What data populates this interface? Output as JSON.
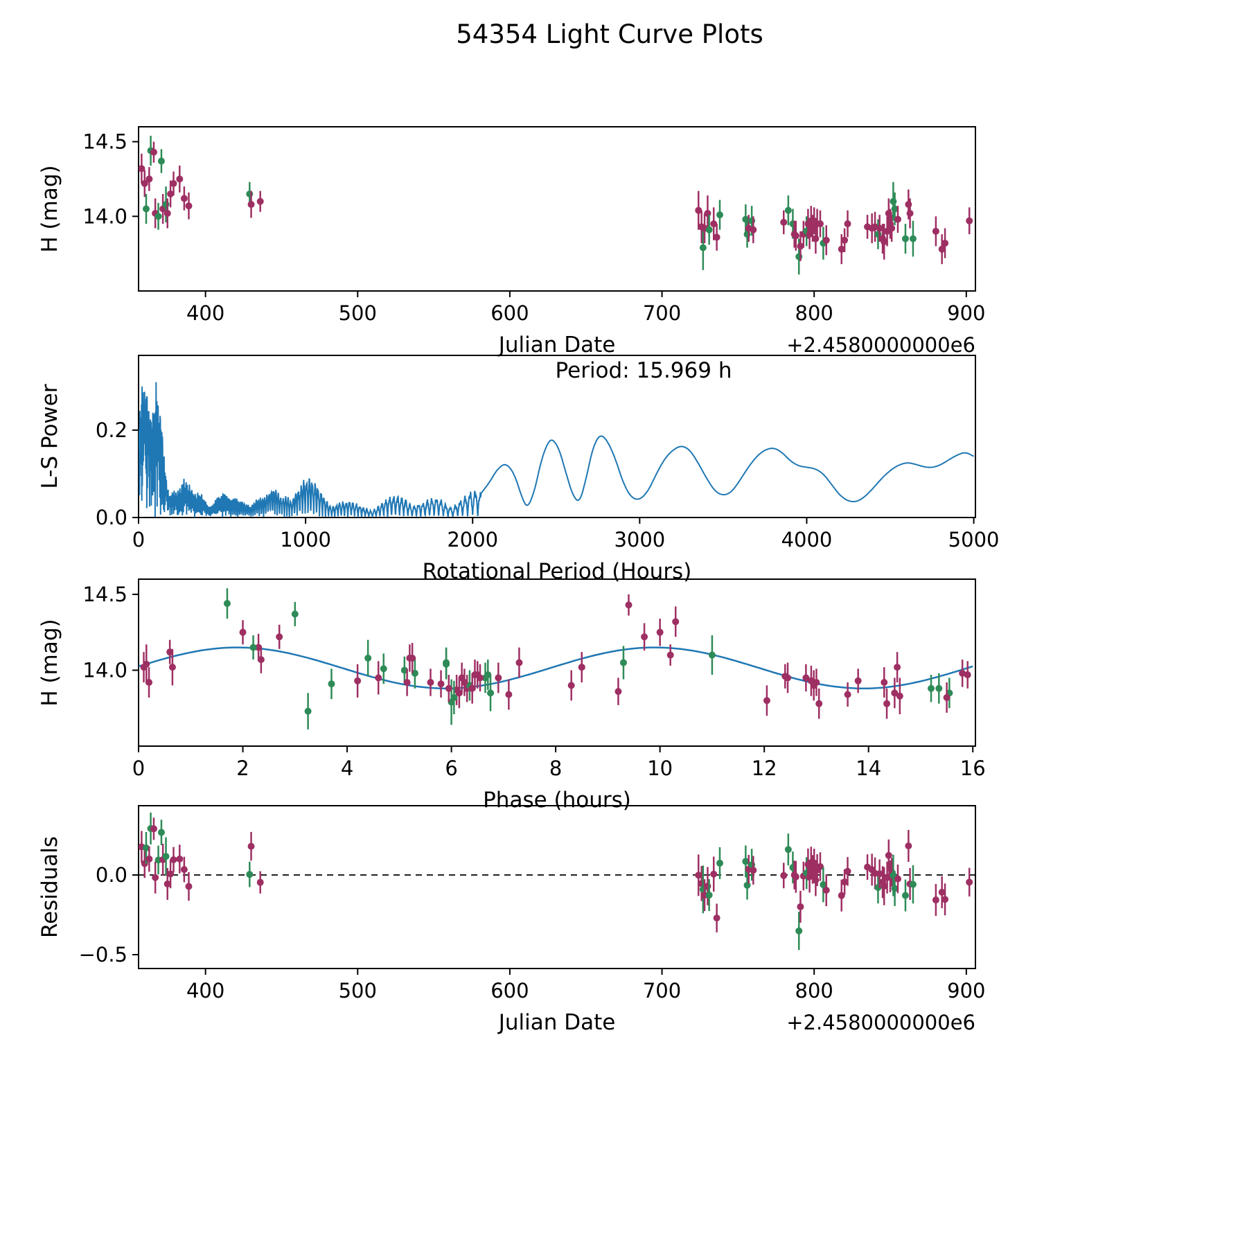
{
  "title": "54354 Light Curve Plots",
  "colors": {
    "series_purple": "#9e2f63",
    "series_green": "#2e8b57",
    "line_blue": "#1f77b4",
    "axis": "#000000"
  },
  "panel1": {
    "ylabel": "H (mag)",
    "xlabel": "Julian Date",
    "offset_text": "+2.4580000000e6",
    "xticks": [
      400,
      500,
      600,
      700,
      800,
      900
    ],
    "yticks": [
      14.0,
      14.5
    ],
    "ytick_labels": [
      "14.0",
      "14.5"
    ]
  },
  "panel2": {
    "ylabel": "L-S Power",
    "xlabel": "Rotational Period (Hours)",
    "annotation": "Period: 15.969 h",
    "xticks": [
      0,
      1000,
      2000,
      3000,
      4000,
      5000
    ],
    "yticks": [
      0.0,
      0.2
    ],
    "ytick_labels": [
      "0.0",
      "0.2"
    ]
  },
  "panel3": {
    "ylabel": "H (mag)",
    "xlabel": "Phase (hours)",
    "xticks": [
      0,
      2,
      4,
      6,
      8,
      10,
      12,
      14,
      16
    ],
    "yticks": [
      14.0,
      14.5
    ],
    "ytick_labels": [
      "14.0",
      "14.5"
    ]
  },
  "panel4": {
    "ylabel": "Residuals",
    "xlabel": "Julian Date",
    "offset_text": "+2.4580000000e6",
    "xticks": [
      400,
      500,
      600,
      700,
      800,
      900
    ],
    "yticks": [
      -0.5,
      0.0
    ],
    "ytick_labels": [
      "−0.5",
      "0.0"
    ]
  },
  "observations": {
    "columns": [
      "jd_minus_2458000",
      "phase_hours",
      "h_mag",
      "err",
      "series"
    ],
    "series_names": [
      "purple",
      "green"
    ],
    "rows": [
      [
        358,
        10.3,
        14.32,
        0.1,
        0
      ],
      [
        360,
        9.7,
        14.22,
        0.09,
        0
      ],
      [
        361,
        5.9,
        14.05,
        0.1,
        1
      ],
      [
        363,
        2.0,
        14.25,
        0.08,
        0
      ],
      [
        364,
        1.7,
        14.44,
        0.1,
        1
      ],
      [
        366,
        9.4,
        14.43,
        0.07,
        0
      ],
      [
        367,
        0.1,
        14.02,
        0.1,
        0
      ],
      [
        369,
        5.1,
        14.0,
        0.09,
        1
      ],
      [
        371,
        3.0,
        14.37,
        0.08,
        1
      ],
      [
        372,
        7.3,
        14.05,
        0.1,
        0
      ],
      [
        374,
        4.4,
        14.08,
        0.12,
        1
      ],
      [
        375,
        8.5,
        14.02,
        0.1,
        0
      ],
      [
        377,
        2.3,
        14.15,
        0.09,
        0
      ],
      [
        379,
        2.7,
        14.22,
        0.08,
        0
      ],
      [
        383,
        10.0,
        14.25,
        0.09,
        0
      ],
      [
        386,
        0.6,
        14.12,
        0.08,
        0
      ],
      [
        389,
        2.35,
        14.07,
        0.09,
        0
      ],
      [
        429,
        2.2,
        14.15,
        0.08,
        1
      ],
      [
        430,
        5.2,
        14.08,
        0.09,
        0
      ],
      [
        436,
        10.2,
        14.1,
        0.07,
        0
      ],
      [
        724,
        0.15,
        14.04,
        0.13,
        0
      ],
      [
        726,
        4.2,
        13.93,
        0.11,
        0
      ],
      [
        727,
        6.0,
        13.79,
        0.15,
        1
      ],
      [
        728,
        0.2,
        13.92,
        0.1,
        0
      ],
      [
        730,
        0.65,
        14.02,
        0.12,
        0
      ],
      [
        731,
        3.7,
        13.91,
        0.1,
        1
      ],
      [
        734,
        4.6,
        13.95,
        0.11,
        0
      ],
      [
        736,
        9.2,
        13.86,
        0.09,
        0
      ],
      [
        738,
        4.7,
        14.01,
        0.1,
        1
      ],
      [
        755,
        5.3,
        13.98,
        0.1,
        1
      ],
      [
        756,
        15.2,
        13.88,
        0.09,
        1
      ],
      [
        757,
        5.6,
        13.92,
        0.09,
        0
      ],
      [
        759,
        6.7,
        13.97,
        0.1,
        1
      ],
      [
        760,
        5.8,
        13.91,
        0.09,
        0
      ],
      [
        780,
        12.4,
        13.96,
        0.08,
        0
      ],
      [
        783,
        5.9,
        14.04,
        0.1,
        1
      ],
      [
        786,
        6.65,
        13.95,
        0.1,
        1
      ],
      [
        787,
        5.95,
        13.88,
        0.09,
        0
      ],
      [
        788,
        6.1,
        13.87,
        0.1,
        0
      ],
      [
        790,
        3.25,
        13.73,
        0.12,
        1
      ],
      [
        791,
        12.05,
        13.8,
        0.1,
        0
      ],
      [
        793,
        6.3,
        13.88,
        0.09,
        0
      ],
      [
        795,
        6.35,
        13.9,
        0.1,
        1
      ],
      [
        796,
        6.2,
        13.95,
        0.1,
        0
      ],
      [
        797,
        6.4,
        13.88,
        0.1,
        0
      ],
      [
        798,
        6.45,
        13.97,
        0.1,
        0
      ],
      [
        799,
        6.25,
        13.92,
        0.09,
        0
      ],
      [
        800,
        6.5,
        13.97,
        0.09,
        0
      ],
      [
        801,
        6.15,
        13.85,
        0.1,
        0
      ],
      [
        802,
        6.9,
        13.95,
        0.1,
        0
      ],
      [
        804,
        6.55,
        13.95,
        0.09,
        0
      ],
      [
        806,
        6.05,
        13.82,
        0.11,
        1
      ],
      [
        808,
        7.1,
        13.84,
        0.1,
        0
      ],
      [
        818,
        13.05,
        13.78,
        0.1,
        0
      ],
      [
        820,
        13.6,
        13.84,
        0.08,
        0
      ],
      [
        822,
        12.8,
        13.95,
        0.09,
        0
      ],
      [
        835,
        13.8,
        13.93,
        0.08,
        0
      ],
      [
        838,
        14.3,
        13.92,
        0.1,
        0
      ],
      [
        840,
        12.9,
        13.93,
        0.1,
        0
      ],
      [
        842,
        15.35,
        13.88,
        0.1,
        1
      ],
      [
        843,
        13.0,
        13.92,
        0.09,
        0
      ],
      [
        845,
        14.5,
        13.85,
        0.1,
        0
      ],
      [
        846,
        14.6,
        13.83,
        0.12,
        0
      ],
      [
        848,
        12.95,
        13.9,
        0.1,
        0
      ],
      [
        849,
        14.55,
        14.02,
        0.1,
        0
      ],
      [
        850,
        12.45,
        13.95,
        0.1,
        0
      ],
      [
        851,
        5.15,
        13.92,
        0.09,
        0
      ],
      [
        852,
        11.0,
        14.1,
        0.13,
        1
      ],
      [
        853,
        9.3,
        14.05,
        0.11,
        1
      ],
      [
        855,
        15.8,
        13.98,
        0.09,
        0
      ],
      [
        860,
        15.55,
        13.85,
        0.1,
        1
      ],
      [
        862,
        5.25,
        14.08,
        0.1,
        0
      ],
      [
        863,
        8.5,
        14.02,
        0.1,
        0
      ],
      [
        865,
        6.75,
        13.85,
        0.12,
        1
      ],
      [
        880,
        8.3,
        13.9,
        0.1,
        0
      ],
      [
        884,
        14.35,
        13.78,
        0.1,
        0
      ],
      [
        886,
        15.5,
        13.82,
        0.1,
        0
      ],
      [
        902,
        15.9,
        13.97,
        0.09,
        0
      ]
    ]
  },
  "chart_data": [
    {
      "type": "scatter",
      "name": "h_mag_vs_julian_date",
      "title": "",
      "xlabel": "Julian Date",
      "ylabel": "H (mag)",
      "x_offset_note": "+2.4580000000e6",
      "xlim": [
        356,
        906
      ],
      "ylim": [
        13.5,
        14.6
      ],
      "source": "observations",
      "x_field": "jd_minus_2458000",
      "y_field": "h_mag",
      "error_field": "err",
      "grid": false
    },
    {
      "type": "line",
      "name": "lomb_scargle_periodogram",
      "xlabel": "Rotational Period (Hours)",
      "ylabel": "L-S Power",
      "annotation": "Period: 15.969 h",
      "best_period_hours": 15.969,
      "xlim": [
        0,
        5010
      ],
      "ylim": [
        0,
        0.371
      ],
      "grid": false,
      "noise_region_end": 2050,
      "noise_period_base": 5,
      "noise_period_slope": 0.028,
      "noise_envelope": [
        [
          0,
          0.3
        ],
        [
          20,
          0.37
        ],
        [
          50,
          0.32
        ],
        [
          80,
          0.25
        ],
        [
          110,
          0.35
        ],
        [
          140,
          0.3
        ],
        [
          160,
          0.18
        ],
        [
          180,
          0.12
        ],
        [
          210,
          0.1
        ],
        [
          240,
          0.08
        ],
        [
          270,
          0.1
        ],
        [
          300,
          0.08
        ],
        [
          340,
          0.06
        ],
        [
          380,
          0.07
        ],
        [
          420,
          0.05
        ],
        [
          460,
          0.06
        ],
        [
          500,
          0.07
        ],
        [
          550,
          0.05
        ],
        [
          600,
          0.045
        ],
        [
          650,
          0.05
        ],
        [
          700,
          0.06
        ],
        [
          750,
          0.05
        ],
        [
          800,
          0.075
        ],
        [
          850,
          0.06
        ],
        [
          900,
          0.08
        ],
        [
          950,
          0.09
        ],
        [
          1000,
          0.1
        ],
        [
          1050,
          0.09
        ],
        [
          1100,
          0.07
        ],
        [
          1150,
          0.05
        ],
        [
          1200,
          0.045
        ],
        [
          1250,
          0.04
        ],
        [
          1300,
          0.035
        ],
        [
          1350,
          0.03
        ],
        [
          1400,
          0.03
        ],
        [
          1450,
          0.04
        ],
        [
          1500,
          0.05
        ],
        [
          1550,
          0.055
        ],
        [
          1600,
          0.06
        ],
        [
          1650,
          0.05
        ],
        [
          1700,
          0.04
        ],
        [
          1750,
          0.045
        ],
        [
          1800,
          0.05
        ],
        [
          1850,
          0.04
        ],
        [
          1900,
          0.05
        ],
        [
          1950,
          0.055
        ],
        [
          2000,
          0.065
        ]
      ],
      "smooth_region": [
        [
          2050,
          0.055
        ],
        [
          2100,
          0.08
        ],
        [
          2150,
          0.112
        ],
        [
          2200,
          0.125
        ],
        [
          2250,
          0.1
        ],
        [
          2300,
          0.04
        ],
        [
          2330,
          0.022
        ],
        [
          2370,
          0.06
        ],
        [
          2410,
          0.13
        ],
        [
          2450,
          0.172
        ],
        [
          2480,
          0.18
        ],
        [
          2520,
          0.155
        ],
        [
          2560,
          0.1
        ],
        [
          2600,
          0.05
        ],
        [
          2640,
          0.033
        ],
        [
          2680,
          0.09
        ],
        [
          2720,
          0.16
        ],
        [
          2760,
          0.19
        ],
        [
          2800,
          0.18
        ],
        [
          2850,
          0.14
        ],
        [
          2900,
          0.08
        ],
        [
          2950,
          0.045
        ],
        [
          3000,
          0.04
        ],
        [
          3050,
          0.06
        ],
        [
          3100,
          0.1
        ],
        [
          3150,
          0.135
        ],
        [
          3200,
          0.155
        ],
        [
          3250,
          0.165
        ],
        [
          3300,
          0.155
        ],
        [
          3350,
          0.125
        ],
        [
          3400,
          0.09
        ],
        [
          3450,
          0.06
        ],
        [
          3500,
          0.05
        ],
        [
          3550,
          0.058
        ],
        [
          3600,
          0.085
        ],
        [
          3650,
          0.115
        ],
        [
          3700,
          0.14
        ],
        [
          3750,
          0.155
        ],
        [
          3800,
          0.16
        ],
        [
          3850,
          0.15
        ],
        [
          3900,
          0.13
        ],
        [
          3950,
          0.118
        ],
        [
          4000,
          0.115
        ],
        [
          4050,
          0.112
        ],
        [
          4100,
          0.1
        ],
        [
          4150,
          0.075
        ],
        [
          4200,
          0.05
        ],
        [
          4250,
          0.037
        ],
        [
          4300,
          0.036
        ],
        [
          4350,
          0.048
        ],
        [
          4400,
          0.068
        ],
        [
          4450,
          0.09
        ],
        [
          4500,
          0.108
        ],
        [
          4550,
          0.12
        ],
        [
          4600,
          0.126
        ],
        [
          4650,
          0.122
        ],
        [
          4700,
          0.116
        ],
        [
          4750,
          0.114
        ],
        [
          4800,
          0.12
        ],
        [
          4850,
          0.132
        ],
        [
          4900,
          0.143
        ],
        [
          4950,
          0.15
        ],
        [
          5000,
          0.14
        ]
      ]
    },
    {
      "type": "scatter",
      "name": "phase_folded_light_curve",
      "xlabel": "Phase (hours)",
      "ylabel": "H (mag)",
      "xlim": [
        0,
        16.05
      ],
      "ylim": [
        13.5,
        14.6
      ],
      "source": "observations",
      "x_field": "phase_hours",
      "y_field": "h_mag",
      "error_field": "err",
      "grid": false,
      "model_fit": {
        "shape": "cosine",
        "mean_mag": 14.015,
        "amplitude": 0.135,
        "period_hours": 8.0,
        "peak_phase_hours": 1.9
      }
    },
    {
      "type": "scatter",
      "name": "residuals_vs_julian_date",
      "xlabel": "Julian Date",
      "ylabel": "Residuals",
      "x_offset_note": "+2.4580000000e6",
      "xlim": [
        356,
        906
      ],
      "ylim": [
        -0.587,
        0.435
      ],
      "source": "observations",
      "x_field": "jd_minus_2458000",
      "y_definition": "h_mag minus model_fit(phase_hours)",
      "zero_line": {
        "style": "dashed",
        "y": 0.0
      },
      "grid": false
    }
  ]
}
